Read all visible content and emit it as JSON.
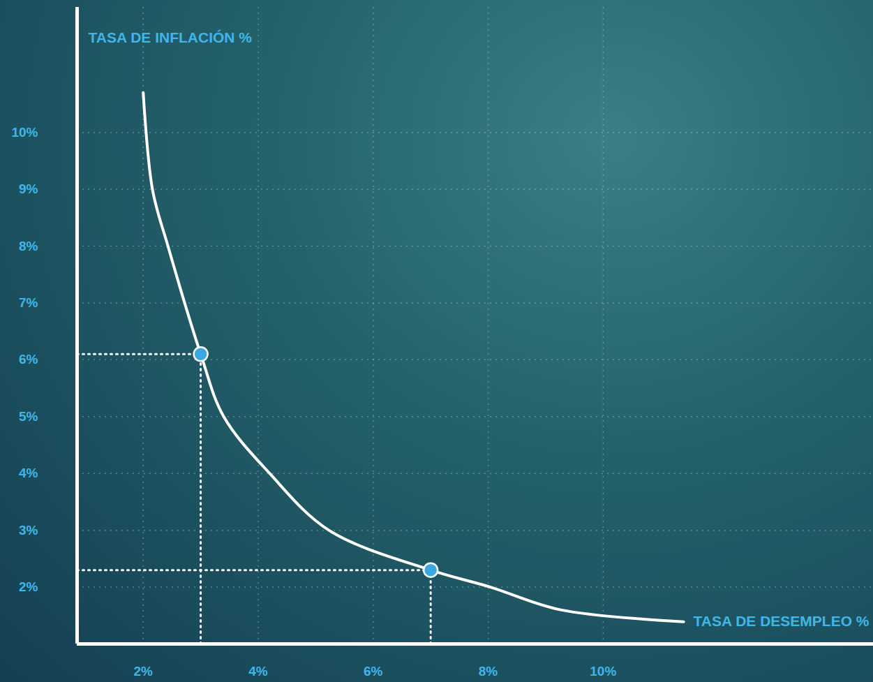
{
  "chart_data": {
    "type": "line",
    "x_label": "TASA DE DESEMPLEO %",
    "y_label": "TASA DE INFLACIÓN %",
    "xlim": [
      0.85,
      14.7
    ],
    "ylim": [
      1,
      12.2
    ],
    "xticks": [
      {
        "value": 2,
        "label": "2%"
      },
      {
        "value": 4,
        "label": "4%"
      },
      {
        "value": 6,
        "label": "6%"
      },
      {
        "value": 8,
        "label": "8%"
      },
      {
        "value": 10,
        "label": "10%"
      }
    ],
    "yticks": [
      {
        "value": 2,
        "label": "2%"
      },
      {
        "value": 3,
        "label": "3%"
      },
      {
        "value": 4,
        "label": "4%"
      },
      {
        "value": 5,
        "label": "5%"
      },
      {
        "value": 6,
        "label": "6%"
      },
      {
        "value": 7,
        "label": "7%"
      },
      {
        "value": 8,
        "label": "8%"
      },
      {
        "value": 9,
        "label": "9%"
      },
      {
        "value": 10,
        "label": "10%"
      }
    ],
    "grid": true,
    "series": [
      {
        "type": "line",
        "color": "#ffffff",
        "line_style": "solid",
        "x": [
          2.0,
          2.16,
          2.43,
          3.0,
          3.4,
          4.2,
          5.23,
          7.0,
          8.04,
          9.26,
          11.4
        ],
        "values": [
          10.7,
          9.0,
          8.0,
          6.1,
          5.0,
          4.0,
          3.0,
          2.3,
          2.0,
          1.6,
          1.39
        ]
      },
      {
        "type": "scatter",
        "color": "#3aa8e0",
        "marker": "circle",
        "x": [
          3.0,
          7.0
        ],
        "values": [
          6.1,
          2.3
        ]
      }
    ]
  }
}
